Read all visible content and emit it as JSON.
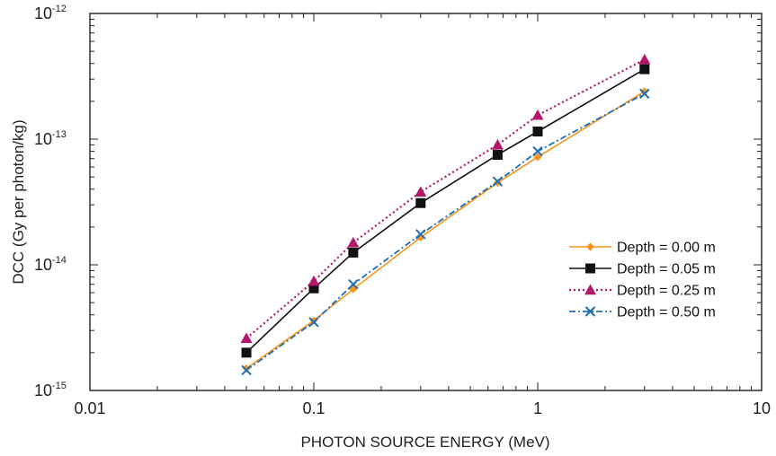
{
  "chart_data": {
    "type": "line",
    "xscale": "log",
    "yscale": "log",
    "xlim": [
      0.01,
      10
    ],
    "ylim": [
      1e-15,
      1e-12
    ],
    "xlabel": "PHOTON SOURCE ENERGY (MeV)",
    "ylabel": "DCC (Gy per photon/kg)",
    "x_ticks": [
      {
        "value": 0.01,
        "label": "0.01"
      },
      {
        "value": 0.1,
        "label": "0.1"
      },
      {
        "value": 1,
        "label": "1"
      },
      {
        "value": 10,
        "label": "10"
      }
    ],
    "y_ticks": [
      {
        "value": 1e-15,
        "base": "10",
        "exp": "-15"
      },
      {
        "value": 1e-14,
        "base": "10",
        "exp": "-14"
      },
      {
        "value": 1e-13,
        "base": "10",
        "exp": "-13"
      },
      {
        "value": 1e-12,
        "base": "10",
        "exp": "-12"
      }
    ],
    "grid": false,
    "legend_position": "right",
    "x": [
      0.05,
      0.1,
      0.15,
      0.3,
      0.662,
      1.0,
      3.0
    ],
    "series": [
      {
        "name": "Depth = 0.00 m",
        "color": "#F7941D",
        "marker": "diamond",
        "dash": "solid",
        "values": [
          1.5e-15,
          3.6e-15,
          6.4e-15,
          1.65e-14,
          4.5e-14,
          7.2e-14,
          2.4e-13
        ]
      },
      {
        "name": "Depth = 0.05 m",
        "color": "#111111",
        "marker": "square",
        "dash": "solid",
        "values": [
          2e-15,
          6.5e-15,
          1.25e-14,
          3.1e-14,
          7.5e-14,
          1.15e-13,
          3.6e-13
        ]
      },
      {
        "name": "Depth = 0.25 m",
        "color": "#B5176B",
        "marker": "triangle",
        "dash": "dotted",
        "values": [
          2.6e-15,
          7.4e-15,
          1.5e-14,
          3.8e-14,
          9e-14,
          1.55e-13,
          4.3e-13
        ]
      },
      {
        "name": "Depth = 0.50 m",
        "color": "#1E6FB3",
        "marker": "cross",
        "dash": "dashdot",
        "values": [
          1.45e-15,
          3.5e-15,
          7e-15,
          1.75e-14,
          4.6e-14,
          8e-14,
          2.3e-13
        ]
      }
    ]
  }
}
